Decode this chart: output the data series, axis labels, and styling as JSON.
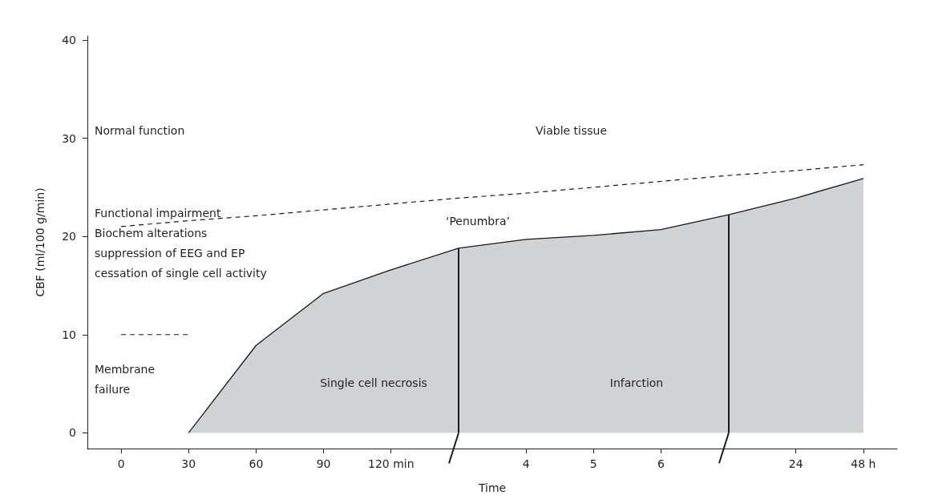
{
  "chart_data": {
    "type": "area",
    "xlabel": "Time",
    "ylabel": "CBF (ml/100 g/min)",
    "categories": [
      "0",
      "30",
      "60",
      "90",
      "120 min",
      null,
      "4",
      "5",
      "6",
      null,
      "24",
      "48 h"
    ],
    "ylim": [
      -1.6,
      40.4
    ],
    "yticks": [
      0,
      10,
      20,
      30,
      40
    ],
    "grid": false,
    "series": [
      {
        "color": "#d1d2d4",
        "values": [
          null,
          0,
          8.9,
          14.2,
          16.6,
          18.8,
          19.7,
          20.1,
          20.7,
          22.2,
          23.9,
          25.9
        ]
      },
      {
        "type": "line",
        "color": "#1a1a1a",
        "line_style": "dashed",
        "values": [
          21.0,
          21.6,
          22.1,
          22.7,
          23.3,
          23.9,
          24.4,
          25.0,
          25.6,
          26.2,
          26.7,
          27.3
        ]
      },
      {
        "type": "line",
        "color": "#1a1a1a",
        "line_style": "dashed",
        "values": [
          10,
          10,
          null,
          null,
          null,
          null,
          null,
          null,
          null,
          null,
          null,
          null
        ]
      }
    ],
    "annotations": [
      "Normal function",
      "Viable tissue",
      "‘Penumbra’",
      "Functional impairment\nBiochem alterations\nsuppression of EEG and EP\ncessation of single cell activity",
      "Membrane\nfailure",
      "Single cell necrosis",
      "Infarction"
    ]
  }
}
